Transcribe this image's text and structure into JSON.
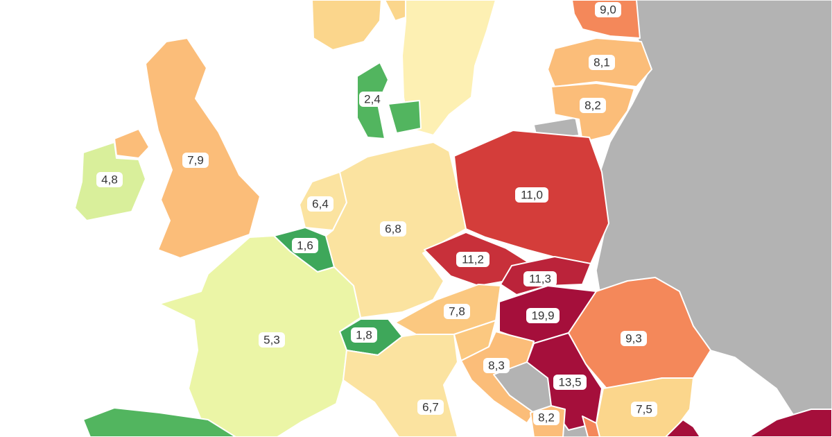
{
  "map": {
    "regions": [
      {
        "id": "finland-top",
        "value": "",
        "color": "#fbd68c"
      },
      {
        "id": "sweden",
        "value": "",
        "color": "#fdf0b3"
      },
      {
        "id": "estonia",
        "value": "9,0",
        "color": "#f4885a"
      },
      {
        "id": "latvia",
        "value": "8,1",
        "color": "#fbbd79"
      },
      {
        "id": "lithuania",
        "value": "8,2",
        "color": "#fbbd79"
      },
      {
        "id": "denmark",
        "value": "2,4",
        "color": "#52b55f"
      },
      {
        "id": "uk",
        "value": "7,9",
        "color": "#fbbd79"
      },
      {
        "id": "ireland",
        "value": "4,8",
        "color": "#d9ef9b"
      },
      {
        "id": "netherlands",
        "value": "6,4",
        "color": "#fbe3a0"
      },
      {
        "id": "belgium",
        "value": "1,6",
        "color": "#3ea75a"
      },
      {
        "id": "germany",
        "value": "6,8",
        "color": "#fbe3a0"
      },
      {
        "id": "poland",
        "value": "11,0",
        "color": "#d43d3a"
      },
      {
        "id": "czechia",
        "value": "11,2",
        "color": "#c8303a"
      },
      {
        "id": "slovakia",
        "value": "11,3",
        "color": "#bb233a"
      },
      {
        "id": "hungary",
        "value": "19,9",
        "color": "#a50f3b"
      },
      {
        "id": "austria",
        "value": "7,8",
        "color": "#fbc880"
      },
      {
        "id": "switzerland",
        "value": "1,8",
        "color": "#3ea75a"
      },
      {
        "id": "france",
        "value": "5,3",
        "color": "#ebf5a6"
      },
      {
        "id": "italy",
        "value": "6,7",
        "color": "#fbe3a0"
      },
      {
        "id": "slovenia",
        "value": "",
        "color": "#fbc880"
      },
      {
        "id": "croatia",
        "value": "8,3",
        "color": "#fbbd79"
      },
      {
        "id": "serbia",
        "value": "13,5",
        "color": "#a50f3b"
      },
      {
        "id": "romania",
        "value": "9,3",
        "color": "#f4885a"
      },
      {
        "id": "bulgaria",
        "value": "7,5",
        "color": "#fbd68c"
      },
      {
        "id": "montenegro",
        "value": "8,2",
        "color": "#fbbd79"
      },
      {
        "id": "spain",
        "value": "",
        "color": "#52b55f"
      },
      {
        "id": "turkey",
        "value": "",
        "color": "#a50f3b"
      }
    ],
    "no_data_color": "#b3b3b3"
  }
}
